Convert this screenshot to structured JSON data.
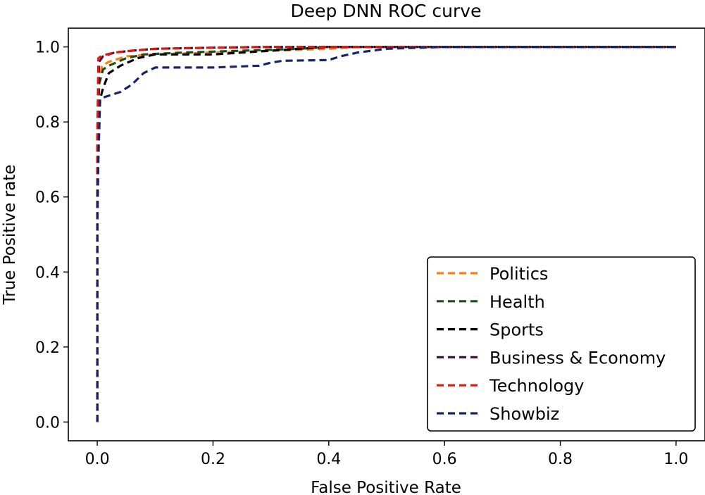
{
  "chart_data": {
    "type": "line",
    "title": "Deep DNN ROC curve",
    "xlabel": "False Positive Rate",
    "ylabel": "True Positive rate",
    "xlim": [
      -0.05,
      1.05
    ],
    "ylim": [
      -0.05,
      1.05
    ],
    "x_ticks": [
      "0.0",
      "0.2",
      "0.4",
      "0.6",
      "0.8",
      "1.0"
    ],
    "y_ticks": [
      "0.0",
      "0.2",
      "0.4",
      "0.6",
      "0.8",
      "1.0"
    ],
    "legend_position": "lower-right",
    "line_style": "dashed",
    "series": [
      {
        "name": "Politics",
        "color": "#ff7f0e",
        "x": [
          0.0,
          0.0,
          0.003,
          0.008,
          0.02,
          0.05,
          0.1,
          0.2,
          0.3,
          0.4,
          0.45,
          1.0
        ],
        "y": [
          0.0,
          0.6,
          0.9,
          0.95,
          0.96,
          0.975,
          0.98,
          0.985,
          0.99,
          0.995,
          1.0,
          1.0
        ]
      },
      {
        "name": "Health",
        "color": "#1a4d1a",
        "x": [
          0.0,
          0.0,
          0.003,
          0.01,
          0.02,
          0.05,
          0.08,
          0.15,
          0.25,
          0.35,
          0.4,
          1.0
        ],
        "y": [
          0.0,
          0.6,
          0.9,
          0.94,
          0.95,
          0.97,
          0.98,
          0.985,
          0.99,
          0.995,
          1.0,
          1.0
        ]
      },
      {
        "name": "Sports",
        "color": "#000000",
        "x": [
          0.0,
          0.0,
          0.003,
          0.01,
          0.02,
          0.04,
          0.07,
          0.1,
          0.2,
          0.3,
          0.35,
          0.4,
          1.0
        ],
        "y": [
          0.0,
          0.5,
          0.85,
          0.89,
          0.93,
          0.95,
          0.97,
          0.98,
          0.98,
          0.99,
          0.995,
          1.0,
          1.0
        ]
      },
      {
        "name": "Business & Economy",
        "color": "#3f0f3f",
        "x": [
          0.0,
          0.0,
          0.003,
          0.01,
          0.03,
          0.06,
          0.1,
          0.2,
          0.3,
          1.0
        ],
        "y": [
          0.0,
          0.7,
          0.96,
          0.975,
          0.985,
          0.99,
          0.995,
          0.998,
          1.0,
          1.0
        ]
      },
      {
        "name": "Technology",
        "color": "#e8140c",
        "x": [
          0.0,
          0.0,
          0.002,
          0.01,
          0.03,
          0.06,
          0.1,
          0.2,
          0.3,
          1.0
        ],
        "y": [
          0.0,
          0.75,
          0.97,
          0.978,
          0.985,
          0.99,
          0.995,
          0.998,
          1.0,
          1.0
        ]
      },
      {
        "name": "Showbiz",
        "color": "#15246b",
        "x": [
          0.0,
          0.0,
          0.005,
          0.01,
          0.02,
          0.04,
          0.06,
          0.08,
          0.1,
          0.2,
          0.28,
          0.3,
          0.32,
          0.4,
          0.42,
          0.45,
          0.5,
          0.6,
          1.0
        ],
        "y": [
          0.0,
          0.6,
          0.86,
          0.865,
          0.87,
          0.88,
          0.9,
          0.93,
          0.945,
          0.945,
          0.95,
          0.958,
          0.963,
          0.965,
          0.975,
          0.985,
          0.995,
          1.0,
          1.0
        ]
      }
    ]
  }
}
